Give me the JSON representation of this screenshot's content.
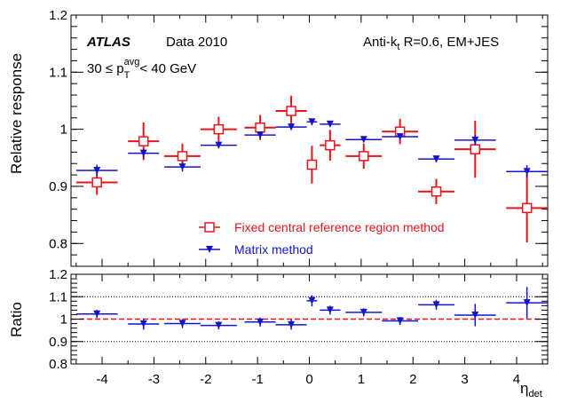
{
  "chart_data": {
    "type": "scatter",
    "annotations": {
      "atlas": "ATLAS",
      "data_label": "Data 2010",
      "jet_algo": "Anti-k",
      "jet_algo_sub": "t",
      "jet_algo_rest": " R=0.6, EM+JES",
      "pt_prefix": "30 ≤ p",
      "pt_sup": "avg",
      "pt_sub": "T",
      "pt_suffix": " < 40 GeV"
    },
    "xlabel": "η",
    "xlabel_sub": "det",
    "xlim": [
      -4.6,
      4.6
    ],
    "x_ticks": [
      -4,
      -3,
      -2,
      -1,
      0,
      1,
      2,
      3,
      4
    ],
    "x_tick_labels": [
      "-4",
      "-3",
      "-2",
      "-1",
      "0",
      "1",
      "2",
      "3",
      "4"
    ],
    "colors": {
      "fixed": "#e8141a",
      "matrix": "#1414c8",
      "unity": "#e8141a"
    },
    "top": {
      "ylabel": "Relative response",
      "ylim": [
        0.76,
        1.2
      ],
      "y_ticks": [
        0.8,
        0.9,
        1.0,
        1.1,
        1.2
      ],
      "y_tick_labels": [
        "0.8",
        "0.9",
        "1",
        "1.1",
        "1.2"
      ],
      "legend": [
        "Fixed central reference region method",
        "Matrix method"
      ],
      "series": [
        {
          "name": "Fixed central reference region method",
          "marker": "open-square",
          "points": [
            {
              "x": -4.1,
              "xerr": 0.4,
              "y": 0.907,
              "yerr": 0.022
            },
            {
              "x": -3.2,
              "xerr": 0.3,
              "y": 0.979,
              "yerr": 0.033
            },
            {
              "x": -2.45,
              "xerr": 0.35,
              "y": 0.953,
              "yerr": 0.022
            },
            {
              "x": -1.75,
              "xerr": 0.35,
              "y": 1.0,
              "yerr": 0.022
            },
            {
              "x": -0.95,
              "xerr": 0.3,
              "y": 1.003,
              "yerr": 0.022
            },
            {
              "x": -0.35,
              "xerr": 0.3,
              "y": 1.032,
              "yerr": 0.027
            },
            {
              "x": 0.05,
              "xerr": 0.1,
              "y": 0.938,
              "yerr": 0.033
            },
            {
              "x": 0.4,
              "xerr": 0.2,
              "y": 0.972,
              "yerr": 0.027
            },
            {
              "x": 1.05,
              "xerr": 0.35,
              "y": 0.953,
              "yerr": 0.022
            },
            {
              "x": 1.75,
              "xerr": 0.35,
              "y": 0.996,
              "yerr": 0.022
            },
            {
              "x": 2.45,
              "xerr": 0.35,
              "y": 0.891,
              "yerr": 0.022
            },
            {
              "x": 3.2,
              "xerr": 0.4,
              "y": 0.965,
              "yerr": 0.05
            },
            {
              "x": 4.2,
              "xerr": 0.4,
              "y": 0.862,
              "yerr": 0.06
            }
          ]
        },
        {
          "name": "Matrix method",
          "marker": "down-triangle",
          "points": [
            {
              "x": -4.1,
              "xerr": 0.4,
              "y": 0.928,
              "yerr": 0.01
            },
            {
              "x": -3.2,
              "xerr": 0.3,
              "y": 0.958,
              "yerr": 0.008
            },
            {
              "x": -2.45,
              "xerr": 0.35,
              "y": 0.934,
              "yerr": 0.008
            },
            {
              "x": -1.75,
              "xerr": 0.35,
              "y": 0.972,
              "yerr": 0.005
            },
            {
              "x": -0.95,
              "xerr": 0.3,
              "y": 0.99,
              "yerr": 0.005
            },
            {
              "x": -0.35,
              "xerr": 0.3,
              "y": 1.004,
              "yerr": 0.005
            },
            {
              "x": 0.05,
              "xerr": 0.1,
              "y": 1.013,
              "yerr": 0.006
            },
            {
              "x": 0.4,
              "xerr": 0.2,
              "y": 1.009,
              "yerr": 0.004
            },
            {
              "x": 1.05,
              "xerr": 0.35,
              "y": 0.982,
              "yerr": 0.005
            },
            {
              "x": 1.75,
              "xerr": 0.35,
              "y": 0.987,
              "yerr": 0.005
            },
            {
              "x": 2.45,
              "xerr": 0.35,
              "y": 0.948,
              "yerr": 0.006
            },
            {
              "x": 3.2,
              "xerr": 0.4,
              "y": 0.981,
              "yerr": 0.009
            },
            {
              "x": 4.2,
              "xerr": 0.4,
              "y": 0.926,
              "yerr": 0.011
            }
          ]
        }
      ]
    },
    "bottom": {
      "ylabel": "Ratio",
      "ylim": [
        0.8,
        1.2
      ],
      "y_ticks": [
        0.8,
        0.9,
        1.0,
        1.1,
        1.2
      ],
      "y_tick_labels": [
        "0.8",
        "0.9",
        "1",
        "1.1",
        "1.2"
      ],
      "reference_lines": {
        "dotted": [
          0.9,
          1.1
        ],
        "dashed": [
          1.0
        ]
      },
      "series": [
        {
          "name": "Matrix method",
          "marker": "down-triangle",
          "points": [
            {
              "x": -4.1,
              "xerr": 0.4,
              "y": 1.023,
              "yerr": 0.018
            },
            {
              "x": -3.2,
              "xerr": 0.3,
              "y": 0.978,
              "yerr": 0.025
            },
            {
              "x": -2.45,
              "xerr": 0.35,
              "y": 0.98,
              "yerr": 0.02
            },
            {
              "x": -1.75,
              "xerr": 0.35,
              "y": 0.972,
              "yerr": 0.018
            },
            {
              "x": -0.95,
              "xerr": 0.3,
              "y": 0.987,
              "yerr": 0.02
            },
            {
              "x": -0.35,
              "xerr": 0.3,
              "y": 0.975,
              "yerr": 0.022
            },
            {
              "x": 0.05,
              "xerr": 0.1,
              "y": 1.082,
              "yerr": 0.025
            },
            {
              "x": 0.4,
              "xerr": 0.2,
              "y": 1.04,
              "yerr": 0.02
            },
            {
              "x": 1.05,
              "xerr": 0.35,
              "y": 1.03,
              "yerr": 0.018
            },
            {
              "x": 1.75,
              "xerr": 0.35,
              "y": 0.992,
              "yerr": 0.018
            },
            {
              "x": 2.45,
              "xerr": 0.35,
              "y": 1.064,
              "yerr": 0.022
            },
            {
              "x": 3.2,
              "xerr": 0.4,
              "y": 1.018,
              "yerr": 0.05
            },
            {
              "x": 4.2,
              "xerr": 0.4,
              "y": 1.073,
              "yerr": 0.07
            }
          ]
        }
      ]
    }
  }
}
